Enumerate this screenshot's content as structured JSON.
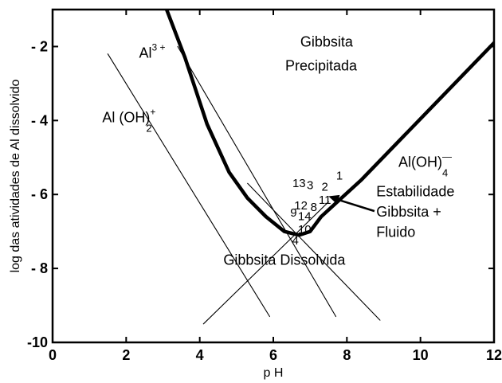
{
  "chart_data": {
    "type": "line",
    "xlabel": "p H",
    "ylabel": "log das atividades de Al dissolvido",
    "xlim": [
      0,
      12
    ],
    "ylim": [
      -10,
      -1
    ],
    "x_ticks": [
      {
        "value": 0,
        "label": "0"
      },
      {
        "value": 2,
        "label": "2"
      },
      {
        "value": 4,
        "label": "4"
      },
      {
        "value": 6,
        "label": "6"
      },
      {
        "value": 8,
        "label": "8"
      },
      {
        "value": 10,
        "label": "10"
      },
      {
        "value": 12,
        "label": "12"
      }
    ],
    "y_ticks": [
      {
        "value": -2,
        "label": "- 2"
      },
      {
        "value": -4,
        "label": "- 4"
      },
      {
        "value": -6,
        "label": "- 6"
      },
      {
        "value": -8,
        "label": "- 8"
      },
      {
        "value": -10,
        "label": "-10"
      }
    ],
    "grid": false,
    "series": [
      {
        "role": "total-solubility",
        "style": "thick",
        "points": [
          [
            3.1,
            -1.0
          ],
          [
            3.6,
            -2.3
          ],
          [
            4.2,
            -4.1
          ],
          [
            4.8,
            -5.4
          ],
          [
            5.3,
            -6.1
          ],
          [
            5.8,
            -6.6
          ],
          [
            6.3,
            -7.0
          ],
          [
            6.7,
            -7.1
          ],
          [
            7.0,
            -7.0
          ],
          [
            7.3,
            -6.6
          ],
          [
            8.4,
            -5.6
          ],
          [
            12.0,
            -1.9
          ]
        ]
      },
      {
        "role": "Al3+",
        "style": "thin",
        "points": [
          [
            3.4,
            -2.0
          ],
          [
            7.7,
            -9.3
          ]
        ]
      },
      {
        "role": "AlOH2+",
        "style": "thin",
        "points": [
          [
            1.5,
            -2.2
          ],
          [
            5.9,
            -9.3
          ]
        ]
      },
      {
        "role": "Al(OH)4-",
        "style": "thin",
        "points": [
          [
            4.1,
            -9.5
          ],
          [
            7.5,
            -6.2
          ]
        ]
      },
      {
        "role": "neutral",
        "style": "thin",
        "points": [
          [
            5.3,
            -5.7
          ],
          [
            8.9,
            -9.4
          ]
        ]
      }
    ],
    "sample_points": [
      {
        "label": "1",
        "x": 7.8,
        "y": -5.6
      },
      {
        "label": "2",
        "x": 7.4,
        "y": -5.9
      },
      {
        "label": "3",
        "x": 7.0,
        "y": -5.85
      },
      {
        "label": "13",
        "x": 6.7,
        "y": -5.8
      },
      {
        "label": "11",
        "x": 7.4,
        "y": -6.25
      },
      {
        "label": "12",
        "x": 6.75,
        "y": -6.4
      },
      {
        "label": "8",
        "x": 7.1,
        "y": -6.45
      },
      {
        "label": "9",
        "x": 6.55,
        "y": -6.6
      },
      {
        "label": "14",
        "x": 6.85,
        "y": -6.7
      },
      {
        "label": "10",
        "x": 6.85,
        "y": -7.05
      },
      {
        "label": "4",
        "x": 6.6,
        "y": -7.35
      }
    ],
    "annotations": [
      {
        "id": "al3",
        "text": "Al",
        "sup": "3 +",
        "x": 2.35,
        "y": -2.3
      },
      {
        "id": "aloh",
        "text": "Al (OH)",
        "sup": "+",
        "sub": "2",
        "x": 1.35,
        "y": -4.05
      },
      {
        "id": "aloh4",
        "text": "Al(OH)",
        "sup": "—",
        "sub": "4",
        "x": 9.4,
        "y": -5.25
      },
      {
        "id": "precip-1",
        "text": "Gibbsita",
        "x": 7.45,
        "y": -2.0
      },
      {
        "id": "precip-2",
        "text": "Precipitada",
        "x": 7.3,
        "y": -2.65
      },
      {
        "id": "stab-1",
        "text": "Estabilidade",
        "x": 8.8,
        "y": -6.05
      },
      {
        "id": "stab-2",
        "text": "Gibbsita +",
        "x": 8.8,
        "y": -6.6
      },
      {
        "id": "stab-3",
        "text": "Fluido",
        "x": 8.8,
        "y": -7.15
      },
      {
        "id": "dissolv",
        "text": "Gibbsita Dissolvida",
        "x": 6.3,
        "y": -7.9
      }
    ],
    "arrow": {
      "from": [
        8.75,
        -6.45
      ],
      "to": [
        7.5,
        -6.05
      ]
    }
  }
}
